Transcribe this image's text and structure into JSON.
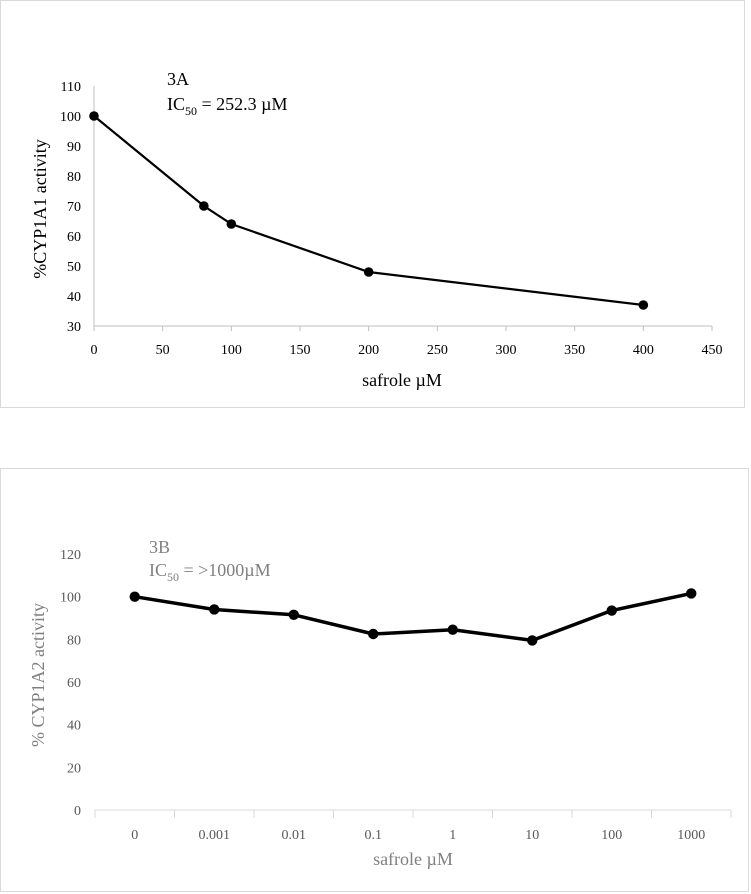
{
  "chart_data": [
    {
      "type": "line",
      "panel_label": "3A",
      "annotation": {
        "label": "3A",
        "ic_prefix": "IC",
        "ic_sub": "50",
        "ic_value": " = 252.3 µM"
      },
      "x": [
        0,
        80,
        100,
        200,
        400
      ],
      "values": [
        100,
        70,
        64,
        48,
        37
      ],
      "xlabel": "safrole µM",
      "ylabel": "%CYP1A1 activity",
      "xlim": [
        0,
        450
      ],
      "ylim": [
        30,
        110
      ],
      "xticks": [
        "0",
        "50",
        "100",
        "150",
        "200",
        "250",
        "300",
        "350",
        "400",
        "450"
      ],
      "yticks": [
        "30",
        "40",
        "50",
        "60",
        "70",
        "80",
        "90",
        "100",
        "110"
      ],
      "grid": false,
      "color": "#000000"
    },
    {
      "type": "line",
      "panel_label": "3B",
      "annotation": {
        "label": "3B",
        "ic_prefix": "IC",
        "ic_sub": "50",
        "ic_value": " = >1000µM"
      },
      "categories": [
        "0",
        "0.001",
        "0.01",
        "0.1",
        "1",
        "10",
        "100",
        "1000"
      ],
      "values": [
        100,
        94,
        91.5,
        82.5,
        84.5,
        79.5,
        93.5,
        101.5
      ],
      "xlabel": "safrole µM",
      "ylabel": "% CYP1A2 activity",
      "ylim": [
        0,
        120
      ],
      "yticks": [
        "0",
        "20",
        "40",
        "60",
        "80",
        "100",
        "120"
      ],
      "grid": false,
      "color": "#000000"
    }
  ]
}
